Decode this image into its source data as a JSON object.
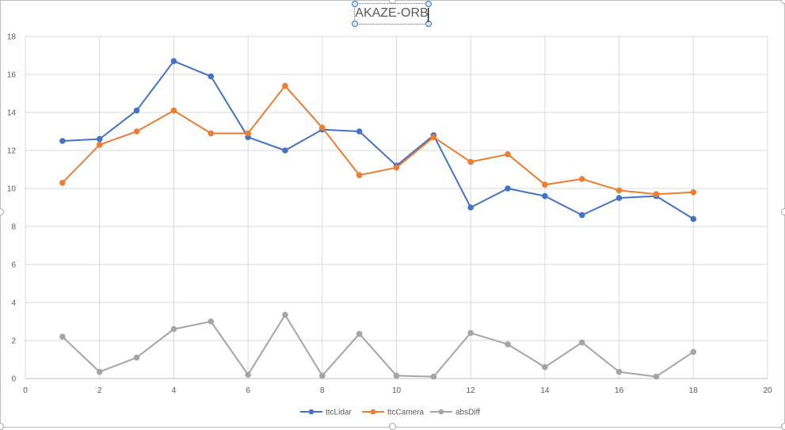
{
  "chart_data": {
    "type": "line",
    "title": "AKAZE-ORB",
    "xlabel": "",
    "ylabel": "",
    "xlim": [
      0,
      20
    ],
    "ylim": [
      0,
      18
    ],
    "x_ticks": [
      0,
      2,
      4,
      6,
      8,
      10,
      12,
      14,
      16,
      18,
      20
    ],
    "y_ticks": [
      0,
      2,
      4,
      6,
      8,
      10,
      12,
      14,
      16,
      18
    ],
    "grid": true,
    "legend_position": "bottom",
    "x": [
      1,
      2,
      3,
      4,
      5,
      6,
      7,
      8,
      9,
      10,
      11,
      12,
      13,
      14,
      15,
      16,
      17,
      18
    ],
    "series": [
      {
        "name": "ttcLidar",
        "color": "#4472c4",
        "values": [
          12.5,
          12.6,
          14.1,
          16.7,
          15.9,
          12.7,
          12.0,
          13.1,
          13.0,
          11.2,
          12.8,
          9.0,
          10.0,
          9.6,
          8.6,
          9.5,
          9.6,
          8.4
        ]
      },
      {
        "name": "ttcCamera",
        "color": "#ed7d31",
        "values": [
          10.3,
          12.3,
          13.0,
          14.1,
          12.9,
          12.9,
          15.4,
          13.2,
          10.7,
          11.1,
          12.7,
          11.4,
          11.8,
          10.2,
          10.5,
          9.9,
          9.7,
          9.8
        ]
      },
      {
        "name": "absDiff",
        "color": "#a5a5a5",
        "values": [
          2.2,
          0.35,
          1.1,
          2.6,
          3.0,
          0.2,
          3.35,
          0.15,
          2.35,
          0.15,
          0.1,
          2.4,
          1.8,
          0.6,
          1.9,
          0.35,
          0.1,
          1.4
        ]
      }
    ]
  }
}
